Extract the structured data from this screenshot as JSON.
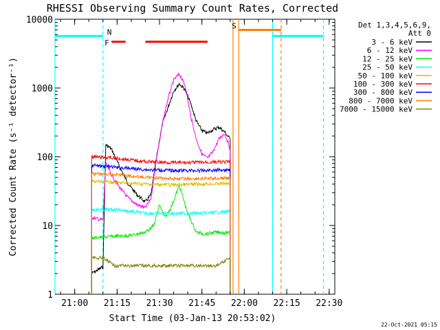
{
  "chart_data": {
    "type": "line",
    "title": "RHESSI Observing Summary Count Rates, Corrected",
    "xlabel": "Start Time (03-Jan-13 20:53:02)",
    "ylabel": "Corrected Count Rate (s⁻¹ detector⁻¹)",
    "y_scale": "log",
    "xlim": [
      "20:53:02",
      "22:32"
    ],
    "ylim": [
      1,
      10000
    ],
    "x_ticks": [
      "21:00",
      "21:15",
      "21:30",
      "21:45",
      "22:00",
      "22:15",
      "22:30"
    ],
    "y_ticks": [
      "1",
      "10",
      "100",
      "1000",
      "10000"
    ],
    "grid": false,
    "legend_position": "top-right",
    "legend_header": [
      "Det 1,3,4,5,6,9,",
      "Att 0"
    ],
    "footer_date": "22-Oct-2021 05:15",
    "series": [
      {
        "name": "3 - 6 keV",
        "color": "#000000",
        "points": [
          [
            "21:06",
            2
          ],
          [
            "21:10",
            2.5
          ],
          [
            "21:11",
            150
          ],
          [
            "21:13",
            130
          ],
          [
            "21:16",
            70
          ],
          [
            "21:19",
            40
          ],
          [
            "21:22",
            28
          ],
          [
            "21:25",
            22
          ],
          [
            "21:27",
            28
          ],
          [
            "21:29",
            100
          ],
          [
            "21:31",
            300
          ],
          [
            "21:33",
            520
          ],
          [
            "21:35",
            900
          ],
          [
            "21:37",
            1150
          ],
          [
            "21:39",
            950
          ],
          [
            "21:41",
            600
          ],
          [
            "21:43",
            330
          ],
          [
            "21:45",
            240
          ],
          [
            "21:47",
            220
          ],
          [
            "21:49",
            250
          ],
          [
            "21:51",
            270
          ],
          [
            "21:53",
            230
          ],
          [
            "21:55",
            180
          ]
        ]
      },
      {
        "name": "6 - 12 keV",
        "color": "#ff00ff",
        "points": [
          [
            "21:06",
            13
          ],
          [
            "21:10",
            12
          ],
          [
            "21:11",
            80
          ],
          [
            "21:13",
            55
          ],
          [
            "21:16",
            35
          ],
          [
            "21:19",
            25
          ],
          [
            "21:22",
            20
          ],
          [
            "21:25",
            18
          ],
          [
            "21:27",
            25
          ],
          [
            "21:29",
            100
          ],
          [
            "21:31",
            300
          ],
          [
            "21:33",
            700
          ],
          [
            "21:35",
            1300
          ],
          [
            "21:37",
            1600
          ],
          [
            "21:39",
            1100
          ],
          [
            "21:41",
            400
          ],
          [
            "21:43",
            180
          ],
          [
            "21:45",
            110
          ],
          [
            "21:47",
            95
          ],
          [
            "21:49",
            120
          ],
          [
            "21:51",
            180
          ],
          [
            "21:53",
            220
          ],
          [
            "21:55",
            130
          ]
        ]
      },
      {
        "name": "12 - 25 keV",
        "color": "#00ee00",
        "points": [
          [
            "21:06",
            6.5
          ],
          [
            "21:10",
            6.8
          ],
          [
            "21:15",
            7
          ],
          [
            "21:20",
            7.2
          ],
          [
            "21:25",
            8
          ],
          [
            "21:28",
            10
          ],
          [
            "21:30",
            20
          ],
          [
            "21:32",
            13
          ],
          [
            "21:34",
            18
          ],
          [
            "21:37",
            38
          ],
          [
            "21:40",
            15
          ],
          [
            "21:43",
            8
          ],
          [
            "21:46",
            7.5
          ],
          [
            "21:50",
            8
          ],
          [
            "21:55",
            7.8
          ]
        ]
      },
      {
        "name": "25 - 50 keV",
        "color": "#00ffff",
        "points": [
          [
            "21:06",
            17
          ],
          [
            "21:15",
            17
          ],
          [
            "21:25",
            15
          ],
          [
            "21:35",
            15
          ],
          [
            "21:45",
            15
          ],
          [
            "21:55",
            16
          ]
        ]
      },
      {
        "name": "50 - 100 keV",
        "color": "#ddbb00",
        "points": [
          [
            "21:06",
            44
          ],
          [
            "21:15",
            42
          ],
          [
            "21:25",
            40
          ],
          [
            "21:35",
            39
          ],
          [
            "21:45",
            40
          ],
          [
            "21:55",
            41
          ]
        ]
      },
      {
        "name": "100 - 300 keV",
        "color": "#ff0000",
        "points": [
          [
            "21:06",
            100
          ],
          [
            "21:15",
            95
          ],
          [
            "21:25",
            85
          ],
          [
            "21:35",
            82
          ],
          [
            "21:45",
            83
          ],
          [
            "21:55",
            84
          ]
        ]
      },
      {
        "name": "300 - 800 keV",
        "color": "#0000ff",
        "points": [
          [
            "21:06",
            75
          ],
          [
            "21:15",
            70
          ],
          [
            "21:25",
            65
          ],
          [
            "21:35",
            63
          ],
          [
            "21:45",
            63
          ],
          [
            "21:55",
            65
          ]
        ]
      },
      {
        "name": "800 - 7000 keV",
        "color": "#ff7f00",
        "points": [
          [
            "21:06",
            57
          ],
          [
            "21:15",
            55
          ],
          [
            "21:25",
            50
          ],
          [
            "21:35",
            48
          ],
          [
            "21:45",
            48
          ],
          [
            "21:55",
            49
          ]
        ]
      },
      {
        "name": "7000 - 15000 keV",
        "color": "#808000",
        "points": [
          [
            "21:06",
            3.4
          ],
          [
            "21:10",
            3.4
          ],
          [
            "21:14",
            2.6
          ],
          [
            "21:20",
            2.6
          ],
          [
            "21:30",
            2.6
          ],
          [
            "21:40",
            2.6
          ],
          [
            "21:50",
            2.6
          ],
          [
            "21:55",
            3.4
          ]
        ]
      }
    ],
    "flag_bars": [
      {
        "label": "N",
        "color": "#00ffff",
        "y": 5700,
        "segments": [
          [
            "20:53:02",
            "21:10"
          ],
          [
            "22:10",
            "22:28"
          ]
        ]
      },
      {
        "label": "F",
        "color": "#ff0000",
        "y": 4700,
        "segments": [
          [
            "21:13",
            "21:18"
          ],
          [
            "21:25",
            "21:47"
          ]
        ]
      },
      {
        "label": "S",
        "color": "#ff7f00",
        "y": 7000,
        "segments": [
          [
            "21:58",
            "22:13"
          ]
        ]
      }
    ],
    "markers": [
      {
        "t": "20:53:02",
        "color": "#00ffff",
        "dash": false
      },
      {
        "t": "21:10",
        "color": "#00ffff",
        "dash": true
      },
      {
        "t": "21:56",
        "color": "#ff7f00",
        "dash": false
      },
      {
        "t": "21:58",
        "color": "#ff7f00",
        "dash": false
      },
      {
        "t": "22:10",
        "color": "#00ffff",
        "dash": false
      },
      {
        "t": "22:13",
        "color": "#ff7f00",
        "dash": true
      },
      {
        "t": "22:28",
        "color": "#00ffff",
        "dash": true
      }
    ]
  }
}
